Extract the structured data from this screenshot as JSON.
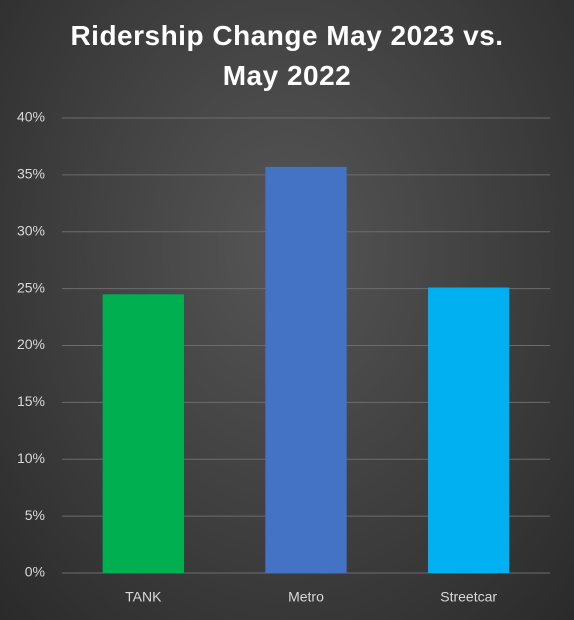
{
  "chart_data": {
    "type": "bar",
    "title": "Ridership Change May 2023 vs. May 2022",
    "categories": [
      "TANK",
      "Metro",
      "Streetcar"
    ],
    "values": [
      24.5,
      35.7,
      25.1
    ],
    "colors": [
      "#00b050",
      "#4472c4",
      "#00b0f0"
    ],
    "ylim": [
      0,
      40
    ],
    "yticks": [
      {
        "value": 0,
        "label": "0%"
      },
      {
        "value": 5,
        "label": "5%"
      },
      {
        "value": 10,
        "label": "10%"
      },
      {
        "value": 15,
        "label": "15%"
      },
      {
        "value": 20,
        "label": "20%"
      },
      {
        "value": 25,
        "label": "25%"
      },
      {
        "value": 30,
        "label": "30%"
      },
      {
        "value": 35,
        "label": "35%"
      },
      {
        "value": 40,
        "label": "40%"
      }
    ],
    "grid": true
  }
}
